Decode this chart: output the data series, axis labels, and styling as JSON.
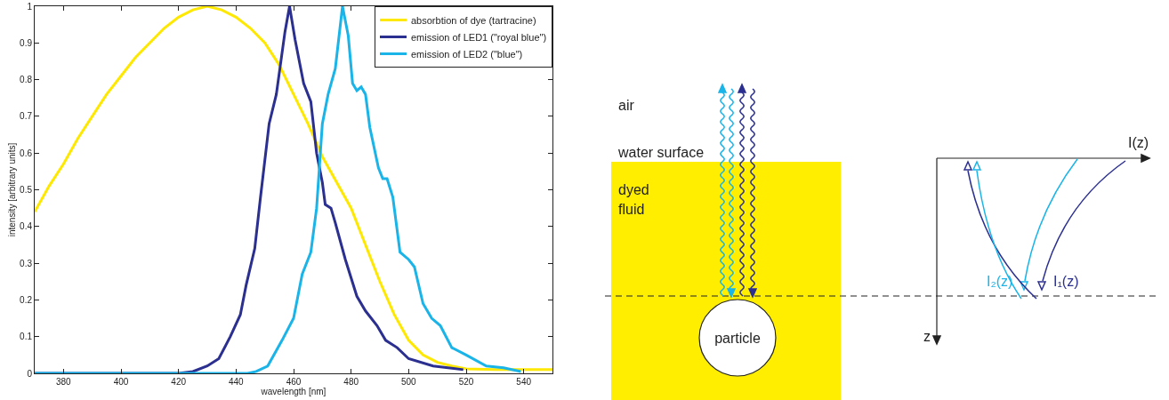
{
  "chart_data": [
    {
      "type": "line",
      "xlabel": "wavelength [nm]",
      "ylabel": "intensity [arbitrary units]",
      "xlim": [
        370,
        550
      ],
      "ylim": [
        0,
        1
      ],
      "xticks": [
        380,
        400,
        420,
        440,
        460,
        480,
        500,
        520,
        540
      ],
      "yticks": [
        0,
        0.1,
        0.2,
        0.3,
        0.4,
        0.5,
        0.6,
        0.7,
        0.8,
        0.9,
        1
      ],
      "grid": false,
      "legend": "top right",
      "marker": "none",
      "line_style": "solid",
      "series": [
        {
          "name": "absorbtion of dye (tartracine)",
          "color": "#ffe800",
          "x": [
            370,
            375,
            380,
            385,
            390,
            395,
            400,
            405,
            410,
            415,
            420,
            425,
            430,
            435,
            440,
            445,
            450,
            455,
            460,
            465,
            470,
            475,
            480,
            485,
            490,
            495,
            500,
            505,
            510,
            515,
            520,
            530,
            540,
            550
          ],
          "values": [
            0.44,
            0.51,
            0.57,
            0.64,
            0.7,
            0.76,
            0.81,
            0.86,
            0.9,
            0.94,
            0.97,
            0.99,
            1,
            0.99,
            0.97,
            0.94,
            0.9,
            0.84,
            0.76,
            0.68,
            0.59,
            0.52,
            0.45,
            0.35,
            0.25,
            0.16,
            0.09,
            0.05,
            0.03,
            0.02,
            0.012,
            0.01,
            0.01,
            0.01
          ]
        },
        {
          "name": "emission of LED1 (\"royal blue\")",
          "color": "#2b2f8f",
          "x": [
            370,
            420,
            425,
            430,
            434,
            438,
            441.5,
            443.5,
            446.5,
            448.5,
            451.5,
            454,
            457,
            458.6,
            460.5,
            463.5,
            466,
            468,
            470,
            471,
            473,
            474.5,
            478,
            482,
            485,
            489,
            492,
            496,
            500,
            508.5,
            519
          ],
          "values": [
            0,
            0,
            0.005,
            0.02,
            0.04,
            0.1,
            0.16,
            0.24,
            0.34,
            0.48,
            0.68,
            0.76,
            0.93,
            1,
            0.91,
            0.79,
            0.74,
            0.6,
            0.52,
            0.46,
            0.45,
            0.41,
            0.31,
            0.21,
            0.17,
            0.13,
            0.09,
            0.07,
            0.04,
            0.02,
            0.01
          ]
        },
        {
          "name": "emission of LED2 (\"blue\")",
          "color": "#1ab4e8",
          "x": [
            370,
            444,
            447,
            451,
            456,
            460,
            463,
            466,
            468,
            470,
            472,
            474.5,
            477,
            479,
            480.5,
            482,
            483.5,
            485,
            486.5,
            489.5,
            491,
            492.5,
            494.5,
            497,
            500,
            502,
            505,
            508,
            511,
            515,
            520,
            527,
            533,
            539
          ],
          "values": [
            0,
            0,
            0.005,
            0.02,
            0.09,
            0.15,
            0.27,
            0.33,
            0.45,
            0.68,
            0.76,
            0.83,
            1,
            0.92,
            0.79,
            0.77,
            0.78,
            0.76,
            0.67,
            0.56,
            0.53,
            0.53,
            0.48,
            0.33,
            0.31,
            0.29,
            0.19,
            0.15,
            0.13,
            0.07,
            0.05,
            0.02,
            0.015,
            0.005
          ]
        }
      ]
    },
    {
      "type": "other",
      "annotations": [
        "air",
        "water surface",
        "dyed\nfluid",
        "particle",
        "I(z)",
        "I₂(z)",
        "I₁(z)",
        "z"
      ]
    }
  ]
}
